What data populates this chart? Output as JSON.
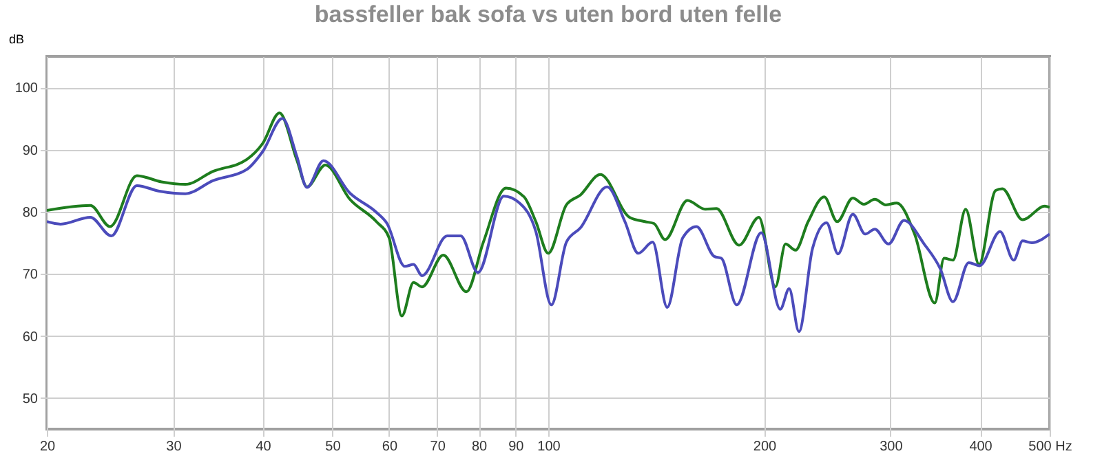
{
  "chart_data": {
    "type": "line",
    "title": "bassfeller bak sofa vs uten bord uten felle",
    "ylabel": "dB",
    "log": "x",
    "xlim": [
      20,
      500
    ],
    "ylim": [
      45,
      105
    ],
    "xticks": [
      20,
      30,
      40,
      50,
      60,
      70,
      80,
      90,
      100,
      200,
      300,
      400,
      {
        "value": 500,
        "label": "500 Hz"
      }
    ],
    "yticks": [
      50,
      60,
      70,
      80,
      90,
      100
    ],
    "grid": true,
    "marker": "none",
    "line_style": "solid",
    "series": [
      {
        "color": "#1e7d1e",
        "x": [
          20,
          23,
          24.5,
          26.7,
          28.9,
          31.2,
          34.1,
          38,
          40,
          42.2,
          44.6,
          46.1,
          48.9,
          52.9,
          57.6,
          60,
          62.5,
          64.9,
          66.7,
          71.4,
          76.9,
          81.2,
          87.3,
          92.5,
          96.1,
          100,
          106,
          110.9,
          118.2,
          129.8,
          136.4,
          140.4,
          145.5,
          156.3,
          165.5,
          171.6,
          184.5,
          196.6,
          207.3,
          214.2,
          221.1,
          230.3,
          242.5,
          252.8,
          265.8,
          275.4,
          285.3,
          295.5,
          306.1,
          324.1,
          345.8,
          356.3,
          366.6,
          381.9,
          398.6,
          420.3,
          429.6,
          458.4,
          492.3,
          500
        ],
        "values": [
          80.2,
          81,
          77.6,
          85.8,
          84.8,
          84.4,
          86.5,
          88.4,
          91,
          95.9,
          88.4,
          84,
          87.5,
          82,
          78.4,
          75.8,
          63.2,
          68.6,
          67.9,
          73,
          67.1,
          75.1,
          83.8,
          82.4,
          78.4,
          73.3,
          81.1,
          82.7,
          86,
          79.1,
          78.4,
          78.1,
          75.5,
          81.8,
          80.4,
          80.5,
          74.6,
          79.1,
          67.9,
          74.8,
          73.8,
          78.4,
          82.4,
          78.4,
          82.2,
          81.2,
          82,
          81.1,
          81.4,
          76.4,
          65.3,
          72.5,
          72.2,
          80.4,
          71.5,
          83.4,
          83.7,
          78.7,
          80.9,
          80.7
        ]
      },
      {
        "color": "#4b4bbb",
        "x": [
          20,
          20.9,
          23,
          24.6,
          26.7,
          28.7,
          31.2,
          34.1,
          38,
          40,
          42.6,
          44.6,
          46.1,
          48.6,
          52.9,
          57.6,
          59.6,
          63.1,
          64.9,
          66.7,
          72.3,
          75.5,
          79.8,
          86.7,
          91.2,
          96.1,
          101,
          106,
          110.9,
          120.8,
          127.9,
          133.5,
          139.8,
          146.5,
          154,
          160.9,
          170.4,
          174.3,
          183.1,
          198.1,
          210.6,
          216.7,
          223.6,
          233.6,
          244.3,
          253.5,
          265.8,
          276.6,
          285.3,
          298.1,
          313.3,
          334.2,
          352,
          366.6,
          385.6,
          399.4,
          426.4,
          445.5,
          458.4,
          472.1,
          500
        ],
        "values": [
          78.4,
          78,
          79.1,
          76.1,
          84.2,
          83.3,
          82.9,
          85,
          86.8,
          89.7,
          95,
          89,
          83.9,
          88.2,
          83,
          79.9,
          78.1,
          71.2,
          71.5,
          69.7,
          76.1,
          76.1,
          70.2,
          82.5,
          81.4,
          76.8,
          65,
          75.1,
          77.4,
          84,
          78.4,
          73.3,
          75.1,
          64.6,
          75.8,
          77.6,
          72.8,
          72.5,
          65,
          76.6,
          64.3,
          67.6,
          60.7,
          74.1,
          78.2,
          73.2,
          79.6,
          76.4,
          77.2,
          74.8,
          78.6,
          74.8,
          70.8,
          65.5,
          71.8,
          71.3,
          76.8,
          72.2,
          75.3,
          75,
          76.4
        ]
      }
    ]
  }
}
